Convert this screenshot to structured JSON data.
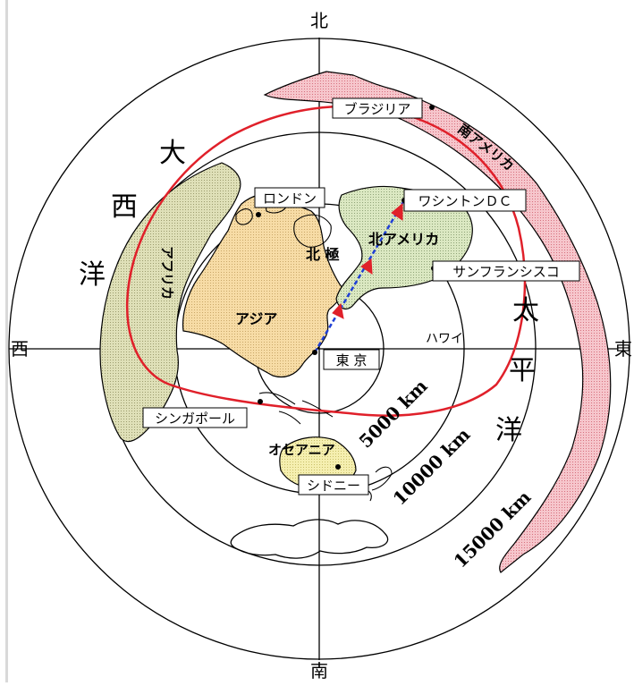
{
  "compass": {
    "north": "北",
    "south": "南",
    "west": "西",
    "east": "東"
  },
  "distance_rings": [
    "5000 km",
    "10000 km",
    "15000 km"
  ],
  "oceans": {
    "atlantic": [
      "大",
      "西",
      "洋"
    ],
    "pacific": [
      "太",
      "平",
      "洋"
    ]
  },
  "regions": {
    "africa": "アフリカ",
    "asia": "アジア",
    "north_america": "北アメリカ",
    "south_america": "南アメリカ",
    "oceania": "オセアニア",
    "north_pole": "北 極"
  },
  "cities": {
    "tokyo": "東 京",
    "london": "ロンドン",
    "brasilia": "ブラジリア",
    "washington": "ワシントンＤＣ",
    "san_francisco": "サンフランシスコ",
    "singapore": "シンガポール",
    "sydney": "シドニー",
    "hawaii": "ハワイ"
  },
  "colors": {
    "africa": "#dfe0b8",
    "asia": "#f7dca6",
    "north_america": "#dbe8c2",
    "south_america": "#f6c6cc",
    "australia": "#f5efb0",
    "ring": "#000000",
    "red_circle": "#e0202a",
    "route_line": "#1f3fd6",
    "route_arrow": "#e0202a"
  }
}
